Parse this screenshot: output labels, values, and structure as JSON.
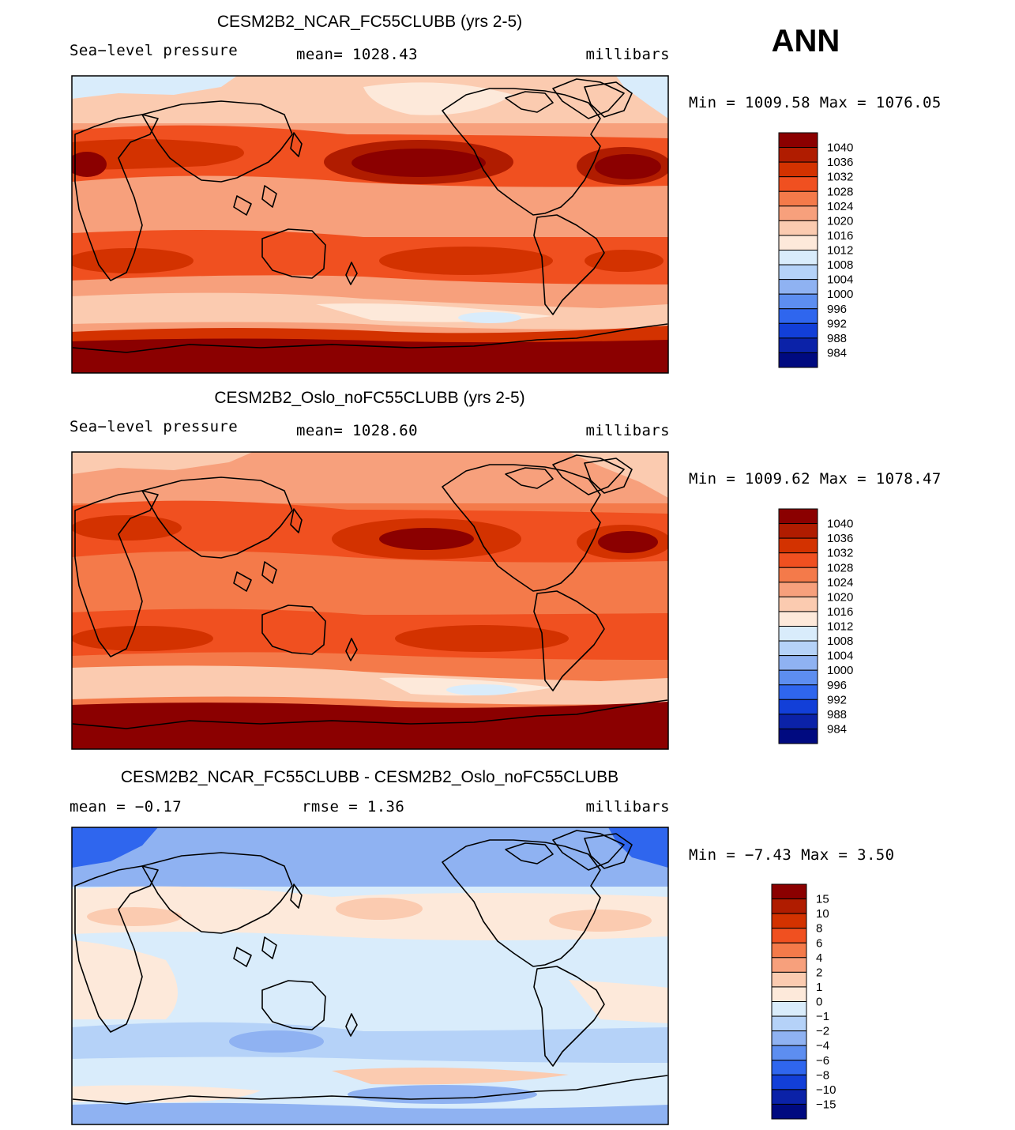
{
  "season": "ANN",
  "chart_data": [
    {
      "type": "heatmap",
      "title": "CESM2B2_NCAR_FC55CLUBB (yrs 2-5)",
      "variable": "Sea−level pressure",
      "mean_text": "mean=  1028.43",
      "units": "millibars",
      "minmax_text": "Min  =  1009.58  Max  =  1076.05",
      "min": 1009.58,
      "max": 1076.05,
      "mean": 1028.43,
      "colorbar": {
        "levels": [
          "1040",
          "1036",
          "1032",
          "1028",
          "1024",
          "1020",
          "1016",
          "1012",
          "1008",
          "1004",
          "1000",
          "996",
          "992",
          "988",
          "984"
        ],
        "colors": [
          "#8b0000",
          "#b01c00",
          "#d33200",
          "#f05020",
          "#f47a4a",
          "#f7a07c",
          "#fbcbb0",
          "#fde9da",
          "#d9ecfb",
          "#b5d2f8",
          "#8fb2f2",
          "#5d8ef0",
          "#2f66ee",
          "#123fd8",
          "#0b22a8",
          "#000a80"
        ]
      }
    },
    {
      "type": "heatmap",
      "title": "CESM2B2_Oslo_noFC55CLUBB (yrs 2-5)",
      "variable": "Sea−level pressure",
      "mean_text": "mean=  1028.60",
      "units": "millibars",
      "minmax_text": "Min  =  1009.62  Max  =  1078.47",
      "min": 1009.62,
      "max": 1078.47,
      "mean": 1028.6,
      "colorbar": {
        "levels": [
          "1040",
          "1036",
          "1032",
          "1028",
          "1024",
          "1020",
          "1016",
          "1012",
          "1008",
          "1004",
          "1000",
          "996",
          "992",
          "988",
          "984"
        ],
        "colors": [
          "#8b0000",
          "#b01c00",
          "#d33200",
          "#f05020",
          "#f47a4a",
          "#f7a07c",
          "#fbcbb0",
          "#fde9da",
          "#d9ecfb",
          "#b5d2f8",
          "#8fb2f2",
          "#5d8ef0",
          "#2f66ee",
          "#123fd8",
          "#0b22a8",
          "#000a80"
        ]
      }
    },
    {
      "type": "heatmap",
      "title": "CESM2B2_NCAR_FC55CLUBB - CESM2B2_Oslo_noFC55CLUBB",
      "variable": "mean  =    −0.17",
      "mean_text": "rmse  =     1.36",
      "units": "millibars",
      "minmax_text": "Min  =    −7.43  Max  =     3.50",
      "min": -7.43,
      "max": 3.5,
      "mean": -0.17,
      "rmse": 1.36,
      "colorbar": {
        "levels": [
          "15",
          "10",
          "8",
          "6",
          "4",
          "2",
          "1",
          "0",
          "−1",
          "−2",
          "−4",
          "−6",
          "−8",
          "−10",
          "−15"
        ],
        "colors": [
          "#8b0000",
          "#b01c00",
          "#d33200",
          "#f05020",
          "#f47a4a",
          "#f7a07c",
          "#fbcbb0",
          "#fde9da",
          "#d9ecfb",
          "#b5d2f8",
          "#8fb2f2",
          "#5d8ef0",
          "#2f66ee",
          "#123fd8",
          "#0b22a8",
          "#000a80"
        ]
      }
    }
  ]
}
